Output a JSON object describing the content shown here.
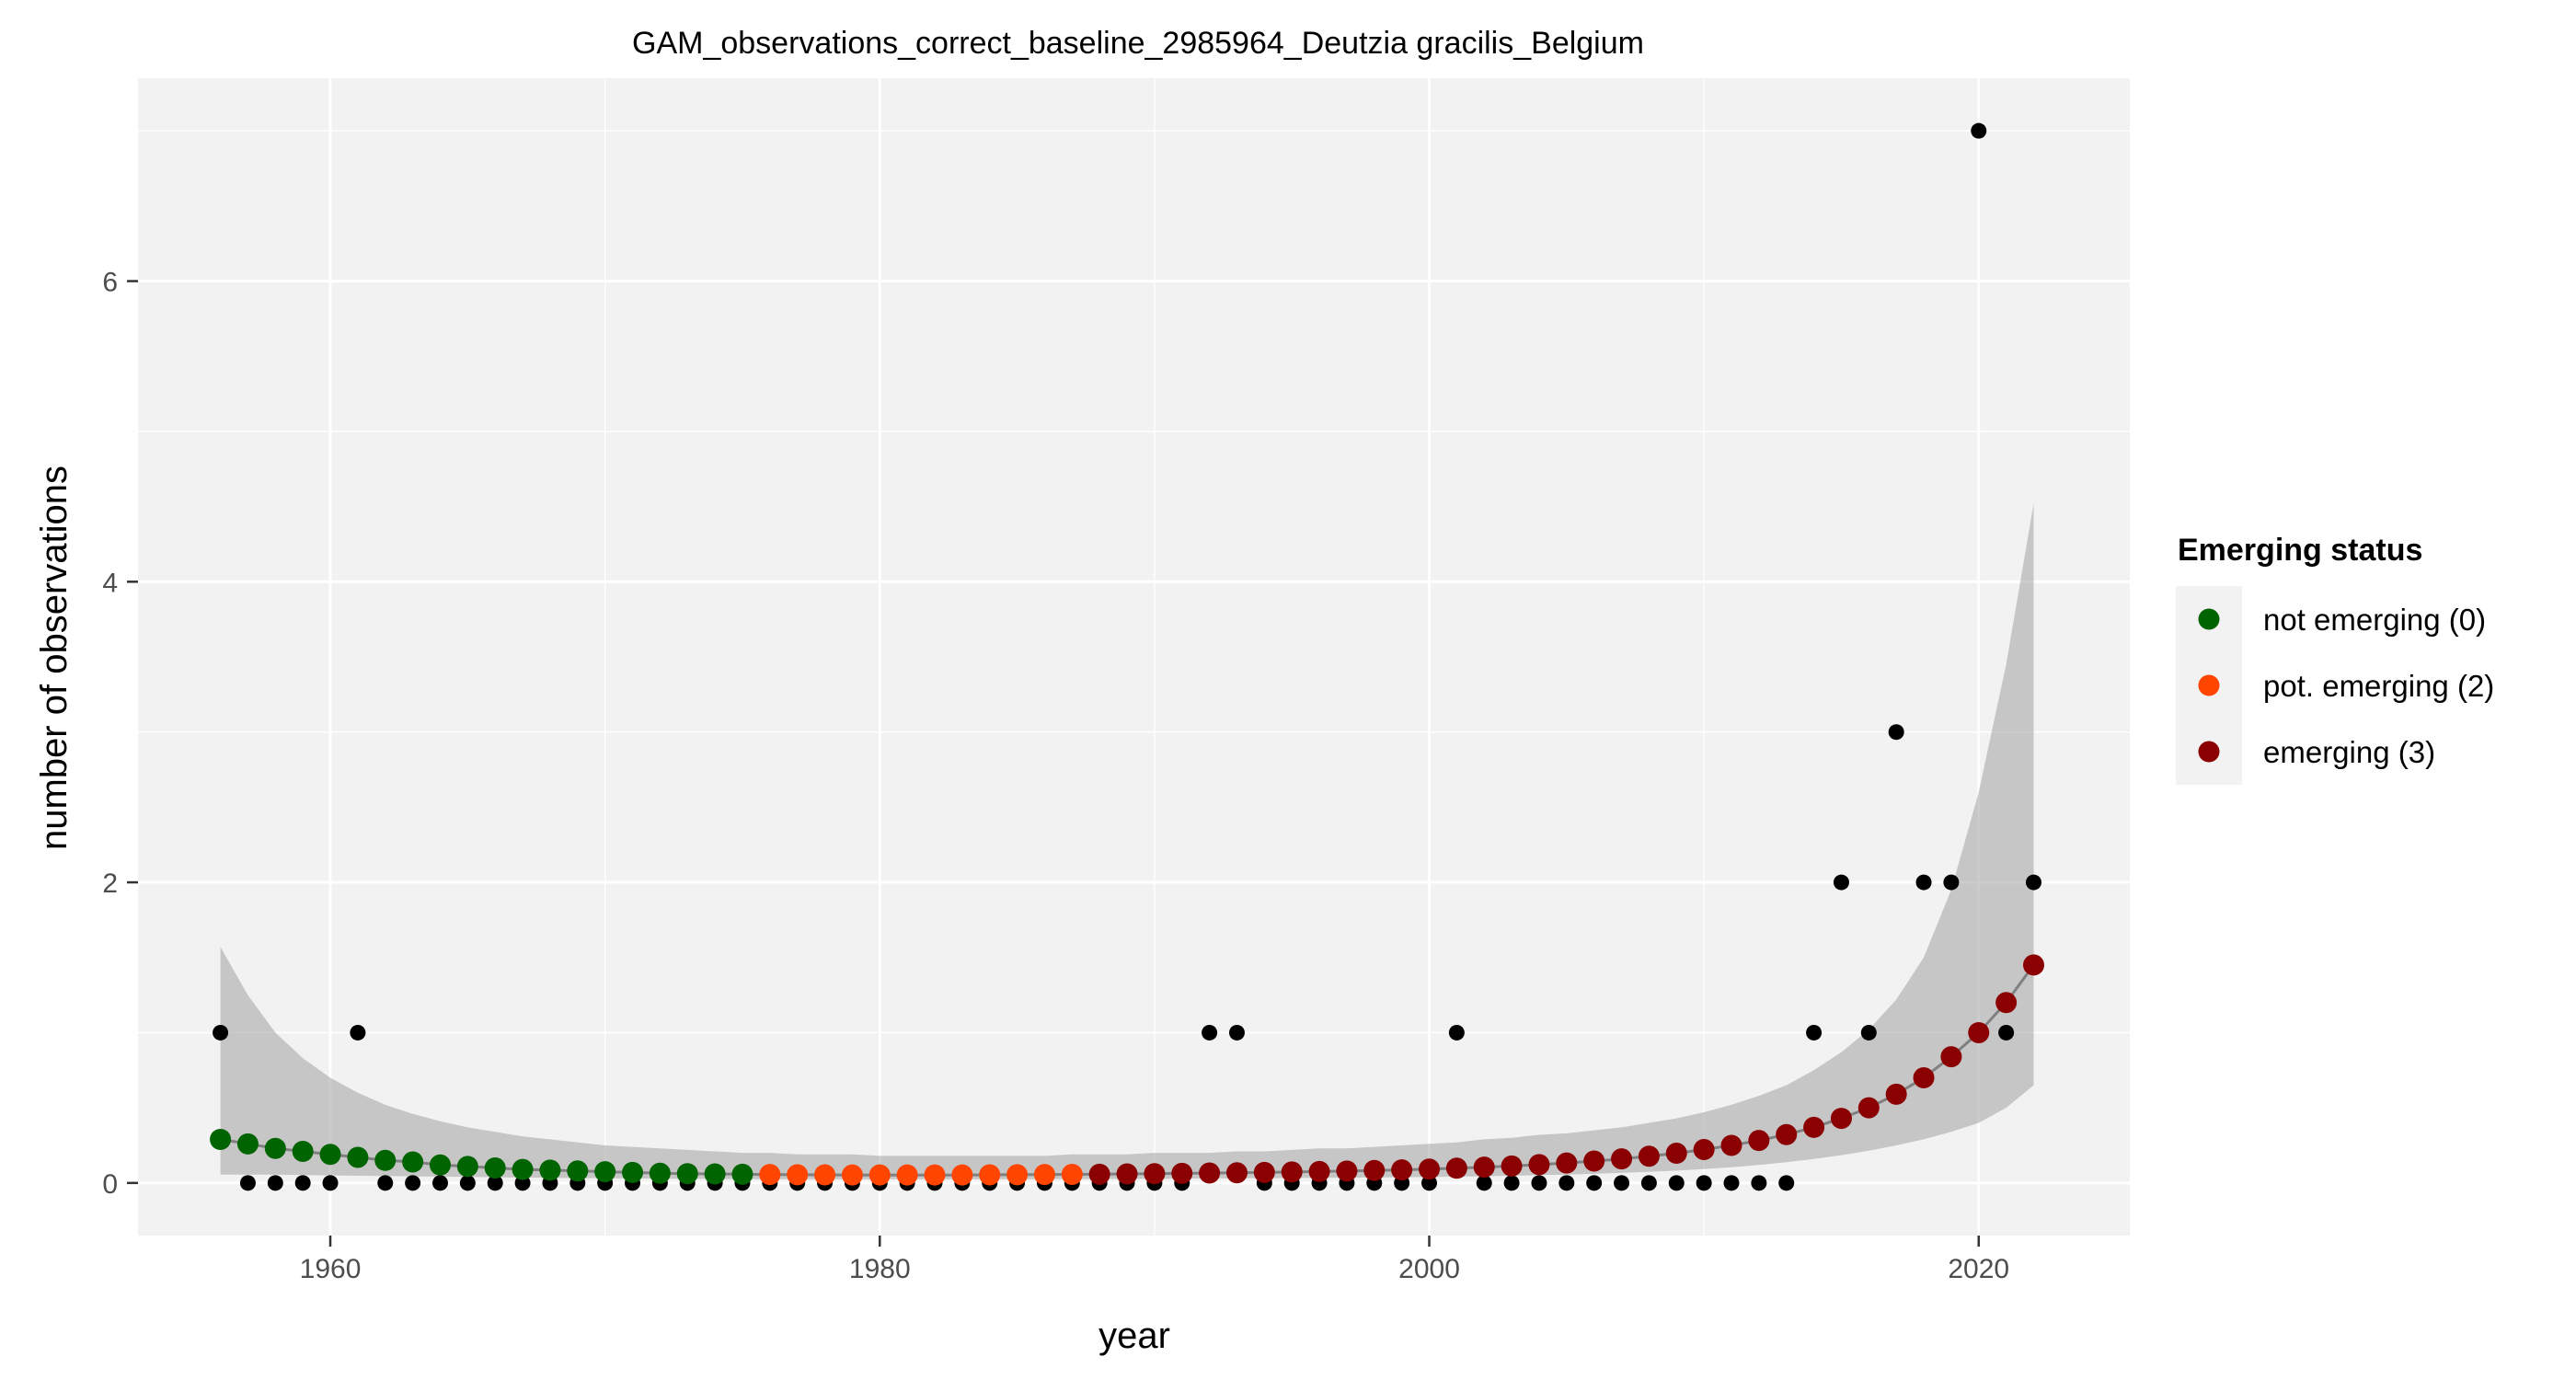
{
  "chart_data": {
    "type": "scatter",
    "title": "GAM_observations_correct_baseline_2985964_Deutzia gracilis_Belgium",
    "xlabel": "year",
    "ylabel": "number of observations",
    "xlim": [
      1953,
      2025.5
    ],
    "ylim": [
      -0.35,
      7.35
    ],
    "x_ticks": [
      1960,
      1980,
      2000,
      2020
    ],
    "y_ticks": [
      0,
      2,
      4,
      6
    ],
    "grid": true,
    "legend": {
      "title": "Emerging status",
      "placement": "right",
      "entries": [
        {
          "label": "not emerging (0)",
          "color": "#006400"
        },
        {
          "label": "pot. emerging (2)",
          "color": "#ff4500"
        },
        {
          "label": "emerging (3)",
          "color": "#8b0000"
        }
      ]
    },
    "observations": {
      "color": "#000000",
      "x": [
        1956,
        1957,
        1958,
        1959,
        1960,
        1961,
        1962,
        1963,
        1964,
        1965,
        1966,
        1967,
        1968,
        1969,
        1970,
        1971,
        1972,
        1973,
        1974,
        1975,
        1976,
        1977,
        1978,
        1979,
        1980,
        1981,
        1982,
        1983,
        1984,
        1985,
        1986,
        1987,
        1988,
        1989,
        1990,
        1991,
        1992,
        1993,
        1994,
        1995,
        1996,
        1997,
        1998,
        1999,
        2000,
        2001,
        2002,
        2003,
        2004,
        2005,
        2006,
        2007,
        2008,
        2009,
        2010,
        2011,
        2012,
        2013,
        2014,
        2015,
        2016,
        2017,
        2018,
        2019,
        2020,
        2021,
        2022
      ],
      "y": [
        1,
        0,
        0,
        0,
        0,
        1,
        0,
        0,
        0,
        0,
        0,
        0,
        0,
        0,
        0,
        0,
        0,
        0,
        0,
        0,
        0,
        0,
        0,
        0,
        0,
        0,
        0,
        0,
        0,
        0,
        0,
        0,
        0,
        0,
        0,
        0,
        1,
        1,
        0,
        0,
        0,
        0,
        0,
        0,
        0,
        1,
        0,
        0,
        0,
        0,
        0,
        0,
        0,
        0,
        0,
        0,
        0,
        0,
        1,
        2,
        1,
        3,
        2,
        2,
        7,
        1,
        2
      ]
    },
    "fit": {
      "x": [
        1956,
        1957,
        1958,
        1959,
        1960,
        1961,
        1962,
        1963,
        1964,
        1965,
        1966,
        1967,
        1968,
        1969,
        1970,
        1971,
        1972,
        1973,
        1974,
        1975,
        1976,
        1977,
        1978,
        1979,
        1980,
        1981,
        1982,
        1983,
        1984,
        1985,
        1986,
        1987,
        1988,
        1989,
        1990,
        1991,
        1992,
        1993,
        1994,
        1995,
        1996,
        1997,
        1998,
        1999,
        2000,
        2001,
        2002,
        2003,
        2004,
        2005,
        2006,
        2007,
        2008,
        2009,
        2010,
        2011,
        2012,
        2013,
        2014,
        2015,
        2016,
        2017,
        2018,
        2019,
        2020,
        2021,
        2022
      ],
      "y": [
        0.29,
        0.26,
        0.23,
        0.21,
        0.19,
        0.17,
        0.15,
        0.14,
        0.12,
        0.11,
        0.1,
        0.09,
        0.085,
        0.08,
        0.075,
        0.07,
        0.065,
        0.062,
        0.06,
        0.058,
        0.056,
        0.055,
        0.054,
        0.053,
        0.053,
        0.053,
        0.053,
        0.053,
        0.054,
        0.055,
        0.056,
        0.057,
        0.058,
        0.06,
        0.062,
        0.064,
        0.066,
        0.068,
        0.07,
        0.073,
        0.076,
        0.079,
        0.083,
        0.087,
        0.092,
        0.098,
        0.105,
        0.113,
        0.122,
        0.133,
        0.146,
        0.16,
        0.178,
        0.198,
        0.222,
        0.25,
        0.283,
        0.322,
        0.37,
        0.43,
        0.5,
        0.59,
        0.7,
        0.84,
        1.0,
        1.2,
        1.45
      ],
      "status": [
        0,
        0,
        0,
        0,
        0,
        0,
        0,
        0,
        0,
        0,
        0,
        0,
        0,
        0,
        0,
        0,
        0,
        0,
        0,
        0,
        2,
        2,
        2,
        2,
        2,
        2,
        2,
        2,
        2,
        2,
        2,
        2,
        3,
        3,
        3,
        3,
        3,
        3,
        3,
        3,
        3,
        3,
        3,
        3,
        3,
        3,
        3,
        3,
        3,
        3,
        3,
        3,
        3,
        3,
        3,
        3,
        3,
        3,
        3,
        3,
        3,
        3,
        3,
        3,
        3,
        3,
        3
      ],
      "ci_upper": [
        1.57,
        1.25,
        1.0,
        0.83,
        0.7,
        0.6,
        0.52,
        0.46,
        0.41,
        0.37,
        0.34,
        0.31,
        0.29,
        0.27,
        0.25,
        0.24,
        0.23,
        0.22,
        0.21,
        0.2,
        0.2,
        0.19,
        0.19,
        0.19,
        0.18,
        0.18,
        0.18,
        0.18,
        0.18,
        0.18,
        0.18,
        0.19,
        0.19,
        0.19,
        0.2,
        0.2,
        0.2,
        0.21,
        0.21,
        0.22,
        0.23,
        0.23,
        0.24,
        0.25,
        0.26,
        0.27,
        0.29,
        0.3,
        0.32,
        0.33,
        0.35,
        0.37,
        0.4,
        0.43,
        0.47,
        0.52,
        0.58,
        0.65,
        0.75,
        0.87,
        1.02,
        1.22,
        1.5,
        1.95,
        2.6,
        3.45,
        4.52
      ],
      "ci_lower": [
        0.055,
        0.055,
        0.055,
        0.052,
        0.05,
        0.048,
        0.046,
        0.044,
        0.042,
        0.04,
        0.038,
        0.036,
        0.034,
        0.032,
        0.031,
        0.03,
        0.029,
        0.028,
        0.027,
        0.026,
        0.025,
        0.025,
        0.025,
        0.025,
        0.025,
        0.025,
        0.025,
        0.025,
        0.025,
        0.025,
        0.025,
        0.026,
        0.026,
        0.027,
        0.028,
        0.029,
        0.03,
        0.031,
        0.032,
        0.033,
        0.034,
        0.035,
        0.037,
        0.038,
        0.04,
        0.042,
        0.045,
        0.048,
        0.052,
        0.056,
        0.061,
        0.067,
        0.074,
        0.082,
        0.092,
        0.105,
        0.12,
        0.138,
        0.16,
        0.185,
        0.215,
        0.25,
        0.29,
        0.34,
        0.4,
        0.5,
        0.65
      ]
    }
  }
}
